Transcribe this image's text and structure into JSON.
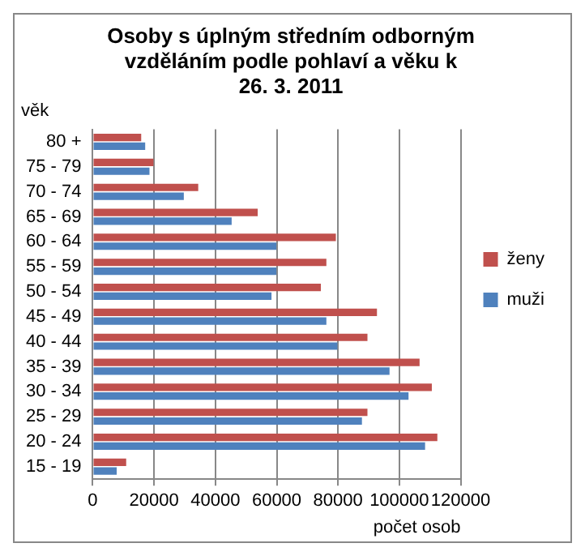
{
  "chart_data": {
    "type": "bar",
    "orientation": "horizontal",
    "title": "Osoby s úplným středním odborným vzděláním podle pohlaví a věku k 26. 3. 2011",
    "xlabel": "počet osob",
    "ylabel": "věk",
    "categories": [
      "80 +",
      "75 - 79",
      "70 - 74",
      "65 - 69",
      "60 - 64",
      "55 - 59",
      "50 - 54",
      "45 - 49",
      "40 - 44",
      "35 - 39",
      "30 - 34",
      "25 - 29",
      "20 - 24",
      "15 - 19"
    ],
    "series": [
      {
        "name": "ženy",
        "color": "#c0504d",
        "values": [
          15800,
          19800,
          34400,
          53800,
          79300,
          76200,
          74400,
          92700,
          89600,
          106600,
          110600,
          89600,
          112400,
          10900
        ]
      },
      {
        "name": "muži",
        "color": "#4f81bd",
        "values": [
          17100,
          18500,
          29700,
          45300,
          59900,
          59900,
          58300,
          76200,
          79800,
          96800,
          103000,
          87800,
          108400,
          7800
        ]
      }
    ],
    "xlim": [
      0,
      120000
    ],
    "xticks": [
      0,
      20000,
      40000,
      60000,
      80000,
      100000,
      120000
    ],
    "grid": "x",
    "legend": "right"
  }
}
